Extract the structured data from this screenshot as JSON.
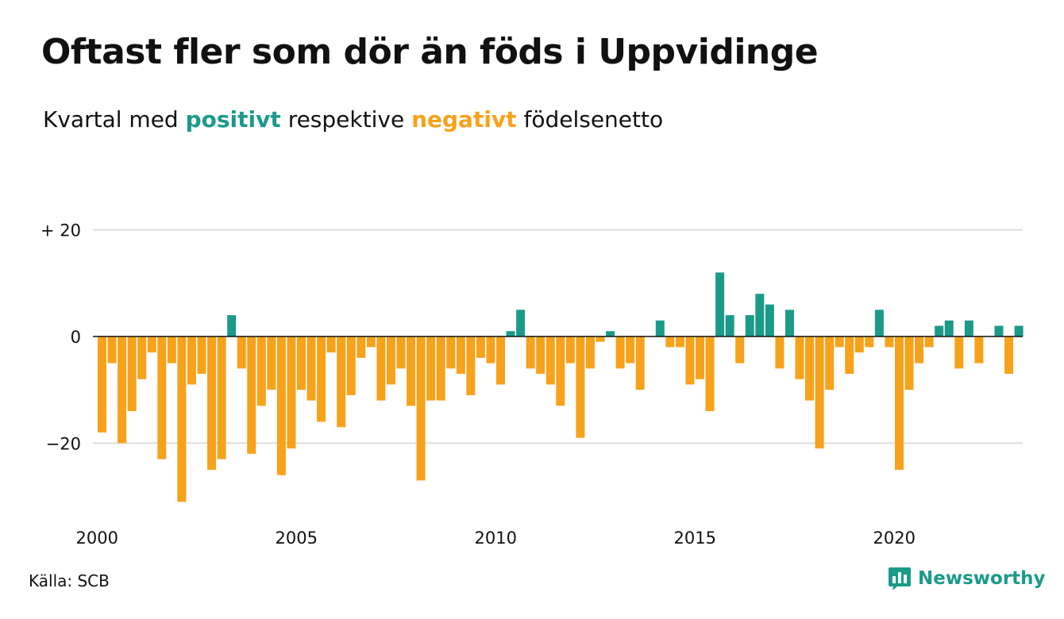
{
  "header": {
    "title": "Oftast fler som dör än föds i Uppvidinge",
    "subtitle_pre": "Kvartal med",
    "subtitle_pos": "positivt",
    "subtitle_mid": "respektive",
    "subtitle_neg": "negativt",
    "subtitle_post": "födelsenetto"
  },
  "footer": {
    "source": "Källa: SCB",
    "brand": "Newsworthy",
    "brand_icon": "bar-chart-badge-icon"
  },
  "colors": {
    "positive": "#1b9a8a",
    "negative": "#f7a21b",
    "grid": "#dddddd",
    "zero_line": "#111111"
  },
  "chart_data": {
    "type": "bar",
    "title": "Oftast fler som dör än föds i Uppvidinge",
    "subtitle": "Kvartal med positivt respektive negativt födelsenetto",
    "xlabel": "",
    "ylabel": "",
    "x_start": "2000 Q1",
    "x_ticks": [
      "2000",
      "2005",
      "2010",
      "2015",
      "2020"
    ],
    "y_ticks": [
      {
        "value": 20,
        "label": "+ 20"
      },
      {
        "value": 0,
        "label": "0"
      },
      {
        "value": -20,
        "label": "−20"
      }
    ],
    "ylim": [
      -31,
      20
    ],
    "grid": true,
    "values": [
      -18,
      -5,
      -20,
      -14,
      -8,
      -3,
      -23,
      -5,
      -31,
      -9,
      -7,
      -25,
      -23,
      4,
      -6,
      -22,
      -13,
      -10,
      -26,
      -21,
      -10,
      -12,
      -16,
      -3,
      -17,
      -11,
      -4,
      -2,
      -12,
      -9,
      -6,
      -13,
      -27,
      -12,
      -12,
      -6,
      -7,
      -11,
      -4,
      -5,
      -9,
      1,
      5,
      -6,
      -7,
      -9,
      -13,
      -5,
      -19,
      -6,
      -1,
      1,
      -6,
      -5,
      -10,
      0,
      3,
      -2,
      -2,
      -9,
      -8,
      -14,
      12,
      4,
      -5,
      4,
      8,
      6,
      -6,
      5,
      -8,
      -12,
      -21,
      -10,
      -2,
      -7,
      -3,
      -2,
      5,
      -2,
      -25,
      -10,
      -5,
      -2,
      2,
      3,
      -6,
      3,
      -5,
      0,
      2,
      -7,
      2
    ]
  }
}
